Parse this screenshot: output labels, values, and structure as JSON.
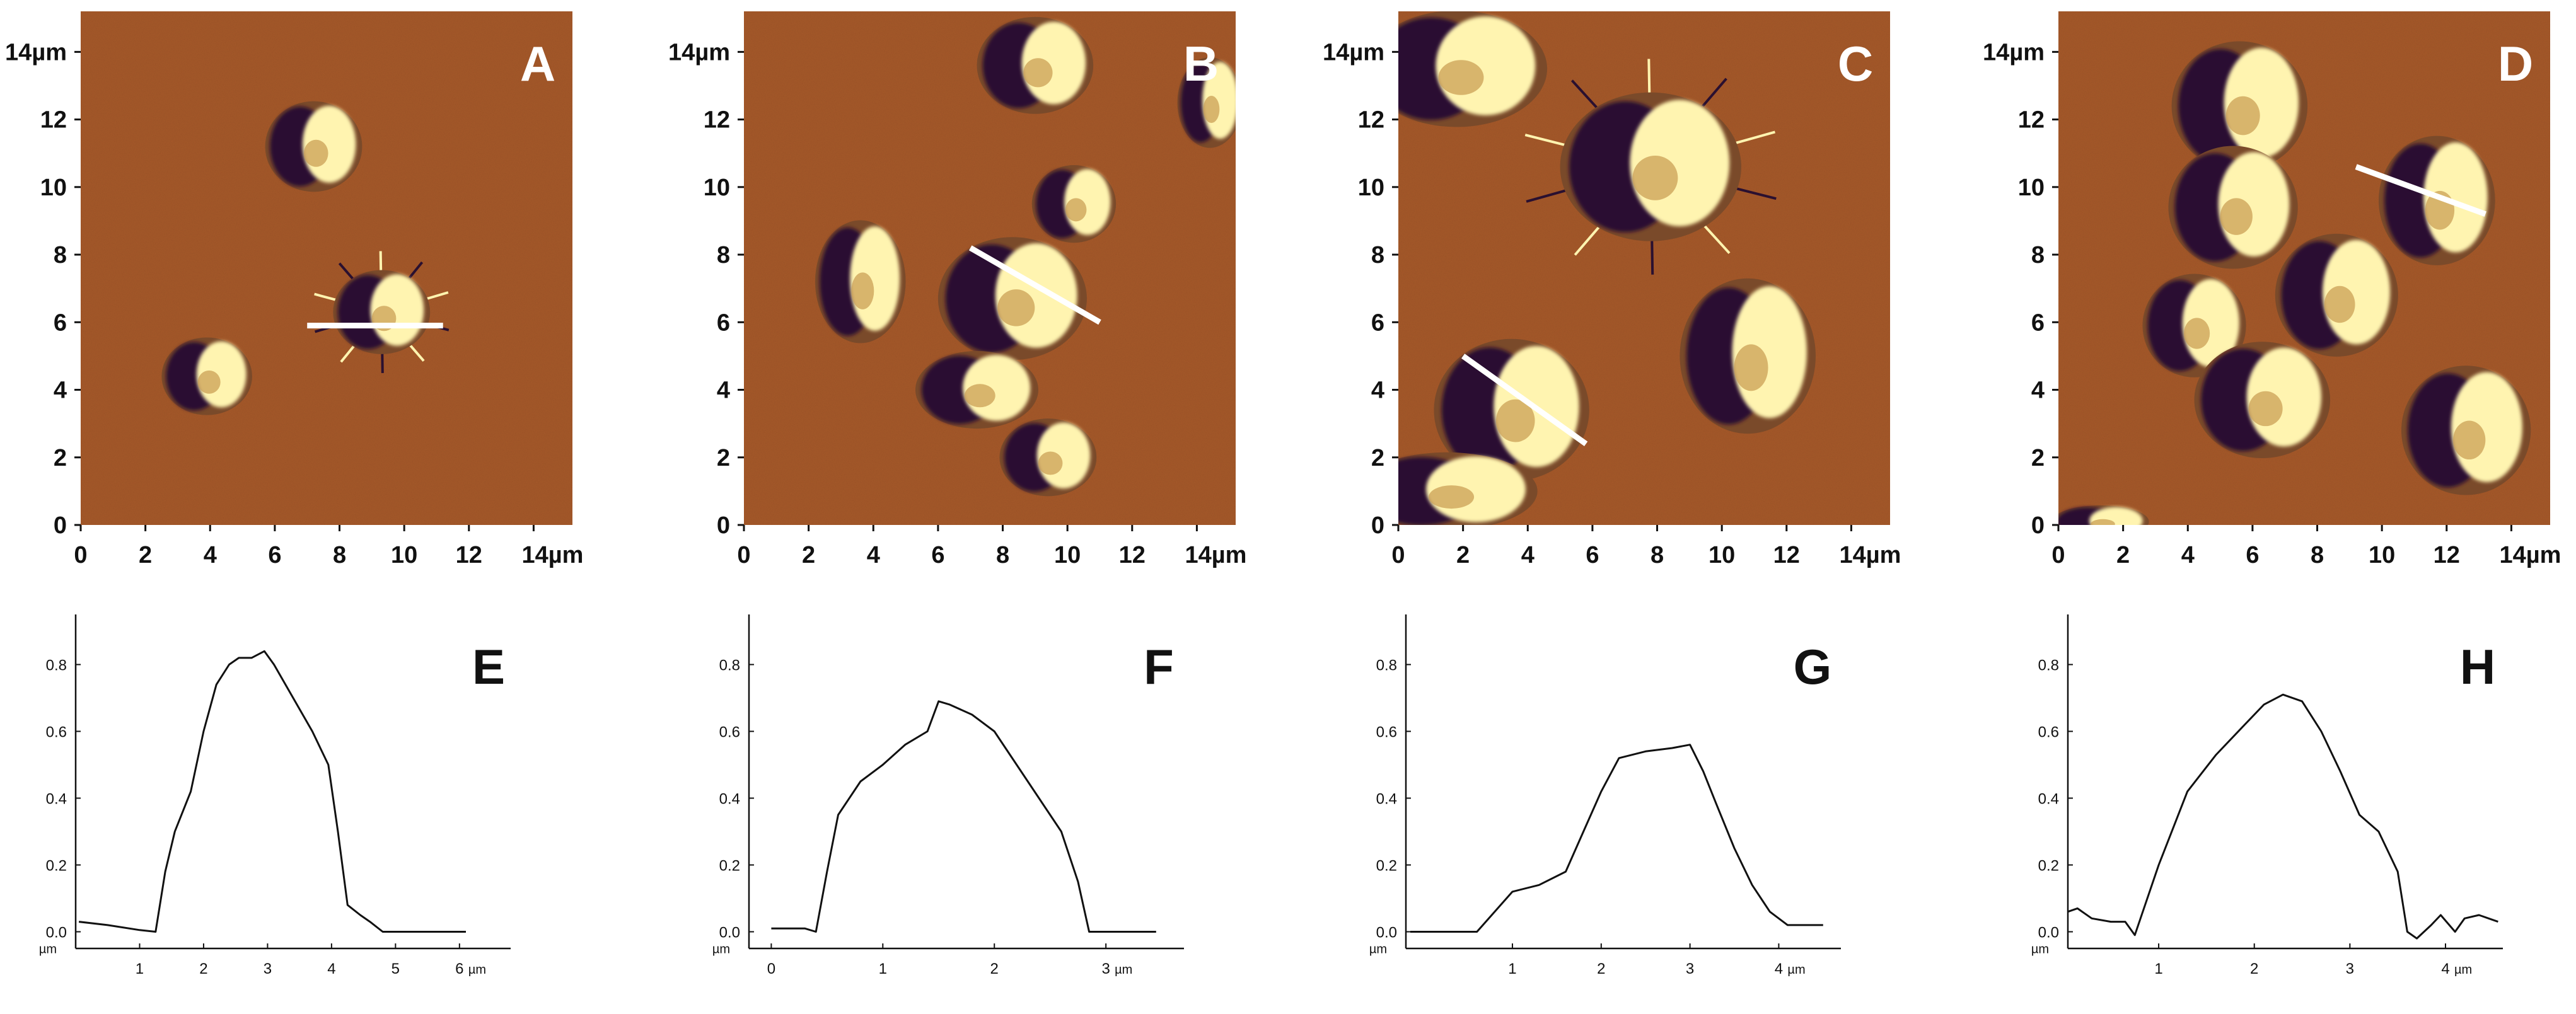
{
  "colors": {
    "afm_background": "#a85a2a",
    "afm_dark": "#2a1030",
    "afm_bright": "#fff4b0",
    "scan_line": "#ffffff",
    "profile_line": "#111111"
  },
  "chart_data": [
    {
      "type": "heatmap",
      "panel": "A",
      "x_ticks": [
        "0",
        "2",
        "4",
        "6",
        "8",
        "10",
        "12",
        "14µm"
      ],
      "y_ticks": [
        "0",
        "2",
        "4",
        "6",
        "8",
        "10",
        "12",
        "14µm"
      ],
      "xlim": [
        0,
        15.2
      ],
      "ylim": [
        0,
        15.2
      ],
      "cells": [
        {
          "cx": 9.3,
          "cy": 6.3,
          "rx": 1.5,
          "ry": 1.3,
          "spikes": true
        },
        {
          "cx": 7.2,
          "cy": 11.2,
          "rx": 1.5,
          "ry": 1.4
        },
        {
          "cx": 3.9,
          "cy": 4.4,
          "rx": 1.4,
          "ry": 1.2
        }
      ],
      "scan_line": {
        "x1": 7.0,
        "y1": 5.9,
        "x2": 11.2,
        "y2": 5.9
      }
    },
    {
      "type": "heatmap",
      "panel": "B",
      "x_ticks": [
        "0",
        "2",
        "4",
        "6",
        "8",
        "10",
        "12",
        "14µm"
      ],
      "y_ticks": [
        "0",
        "2",
        "4",
        "6",
        "8",
        "10",
        "12",
        "14µm"
      ],
      "xlim": [
        0,
        15.2
      ],
      "ylim": [
        0,
        15.2
      ],
      "cells": [
        {
          "cx": 3.6,
          "cy": 7.2,
          "rx": 1.4,
          "ry": 1.9
        },
        {
          "cx": 8.3,
          "cy": 6.7,
          "rx": 2.3,
          "ry": 1.9
        },
        {
          "cx": 7.2,
          "cy": 4.0,
          "rx": 1.9,
          "ry": 1.2
        },
        {
          "cx": 9.4,
          "cy": 2.0,
          "rx": 1.5,
          "ry": 1.2
        },
        {
          "cx": 10.2,
          "cy": 9.5,
          "rx": 1.3,
          "ry": 1.2
        },
        {
          "cx": 9.0,
          "cy": 13.6,
          "rx": 1.8,
          "ry": 1.5
        },
        {
          "cx": 14.4,
          "cy": 12.5,
          "rx": 1.0,
          "ry": 1.4
        }
      ],
      "scan_line": {
        "x1": 7.0,
        "y1": 8.2,
        "x2": 11.0,
        "y2": 6.0
      }
    },
    {
      "type": "heatmap",
      "panel": "C",
      "x_ticks": [
        "0",
        "2",
        "4",
        "6",
        "8",
        "10",
        "12",
        "14µm"
      ],
      "y_ticks": [
        "0",
        "2",
        "4",
        "6",
        "8",
        "10",
        "12",
        "14µm"
      ],
      "xlim": [
        0,
        15.2
      ],
      "ylim": [
        0,
        15.2
      ],
      "cells": [
        {
          "cx": 7.8,
          "cy": 10.6,
          "rx": 2.8,
          "ry": 2.3,
          "spikes": true
        },
        {
          "cx": 10.8,
          "cy": 5.0,
          "rx": 2.1,
          "ry": 2.4
        },
        {
          "cx": 3.5,
          "cy": 3.4,
          "rx": 2.4,
          "ry": 2.2
        },
        {
          "cx": 1.8,
          "cy": 13.5,
          "rx": 2.8,
          "ry": 1.8
        },
        {
          "cx": 1.5,
          "cy": 1.0,
          "rx": 2.8,
          "ry": 1.2
        }
      ],
      "scan_line": {
        "x1": 2.0,
        "y1": 5.0,
        "x2": 5.8,
        "y2": 2.4
      }
    },
    {
      "type": "heatmap",
      "panel": "D",
      "x_ticks": [
        "0",
        "2",
        "4",
        "6",
        "8",
        "10",
        "12",
        "14µm"
      ],
      "y_ticks": [
        "0",
        "2",
        "4",
        "6",
        "8",
        "10",
        "12",
        "14µm"
      ],
      "xlim": [
        0,
        15.2
      ],
      "ylim": [
        0,
        15.2
      ],
      "cells": [
        {
          "cx": 5.6,
          "cy": 12.4,
          "rx": 2.1,
          "ry": 2.0
        },
        {
          "cx": 5.4,
          "cy": 9.4,
          "rx": 2.0,
          "ry": 1.9
        },
        {
          "cx": 8.6,
          "cy": 6.8,
          "rx": 1.9,
          "ry": 1.9
        },
        {
          "cx": 11.7,
          "cy": 9.6,
          "rx": 1.8,
          "ry": 2.0
        },
        {
          "cx": 4.2,
          "cy": 5.9,
          "rx": 1.6,
          "ry": 1.6
        },
        {
          "cx": 6.3,
          "cy": 3.7,
          "rx": 2.1,
          "ry": 1.8
        },
        {
          "cx": 12.6,
          "cy": 2.8,
          "rx": 2.0,
          "ry": 2.0
        },
        {
          "cx": 1.3,
          "cy": 0.1,
          "rx": 1.5,
          "ry": 0.5
        }
      ],
      "scan_line": {
        "x1": 9.2,
        "y1": 10.6,
        "x2": 13.2,
        "y2": 9.2
      }
    },
    {
      "type": "line",
      "panel": "E",
      "x_ticks": [
        "1",
        "2",
        "3",
        "4",
        "5",
        "6"
      ],
      "x_unit": "µm",
      "y_ticks": [
        "0.0",
        "0.2",
        "0.4",
        "0.6",
        "0.8"
      ],
      "y_unit": "µm",
      "xlim": [
        0,
        6.8
      ],
      "ylim": [
        -0.05,
        0.95
      ],
      "x": [
        0.05,
        0.5,
        1.0,
        1.25,
        1.4,
        1.55,
        1.8,
        2.0,
        2.2,
        2.4,
        2.55,
        2.75,
        2.95,
        3.1,
        3.4,
        3.7,
        3.95,
        4.1,
        4.25,
        4.45,
        4.6,
        4.8,
        5.2,
        5.6,
        6.1
      ],
      "y": [
        0.03,
        0.02,
        0.005,
        0.0,
        0.18,
        0.3,
        0.42,
        0.6,
        0.74,
        0.8,
        0.82,
        0.82,
        0.84,
        0.8,
        0.7,
        0.6,
        0.5,
        0.3,
        0.08,
        0.05,
        0.03,
        0.0,
        0.0,
        0.0,
        0.0
      ]
    },
    {
      "type": "line",
      "panel": "F",
      "x_ticks": [
        "0",
        "1",
        "2",
        "3"
      ],
      "x_unit": "µm",
      "y_ticks": [
        "0.0",
        "0.2",
        "0.4",
        "0.6",
        "0.8"
      ],
      "y_unit": "µm",
      "xlim": [
        -0.2,
        3.7
      ],
      "ylim": [
        -0.05,
        0.95
      ],
      "x": [
        0.0,
        0.15,
        0.3,
        0.4,
        0.5,
        0.6,
        0.8,
        1.0,
        1.2,
        1.4,
        1.5,
        1.6,
        1.8,
        2.0,
        2.2,
        2.4,
        2.6,
        2.75,
        2.85,
        3.0,
        3.2,
        3.45
      ],
      "y": [
        0.01,
        0.01,
        0.01,
        0.0,
        0.18,
        0.35,
        0.45,
        0.5,
        0.56,
        0.6,
        0.69,
        0.68,
        0.65,
        0.6,
        0.5,
        0.4,
        0.3,
        0.15,
        0.0,
        0.0,
        0.0,
        0.0
      ]
    },
    {
      "type": "line",
      "panel": "G",
      "x_ticks": [
        "1",
        "2",
        "3",
        "4"
      ],
      "x_unit": "µm",
      "y_ticks": [
        "0.0",
        "0.2",
        "0.4",
        "0.6",
        "0.8"
      ],
      "y_unit": "µm",
      "xlim": [
        -0.2,
        4.7
      ],
      "ylim": [
        -0.05,
        0.95
      ],
      "x": [
        -0.15,
        0.3,
        0.6,
        0.8,
        1.0,
        1.3,
        1.6,
        1.8,
        2.0,
        2.2,
        2.5,
        2.8,
        3.0,
        3.15,
        3.3,
        3.5,
        3.7,
        3.9,
        4.1,
        4.5
      ],
      "y": [
        0.0,
        0.0,
        0.0,
        0.06,
        0.12,
        0.14,
        0.18,
        0.3,
        0.42,
        0.52,
        0.54,
        0.55,
        0.56,
        0.48,
        0.38,
        0.25,
        0.14,
        0.06,
        0.02,
        0.02
      ]
    },
    {
      "type": "line",
      "panel": "H",
      "x_ticks": [
        "1",
        "2",
        "3",
        "4"
      ],
      "x_unit": "µm",
      "y_ticks": [
        "0.0",
        "0.2",
        "0.4",
        "0.6",
        "0.8"
      ],
      "y_unit": "µm",
      "xlim": [
        0.05,
        4.6
      ],
      "ylim": [
        -0.05,
        0.95
      ],
      "x": [
        0.05,
        0.15,
        0.3,
        0.5,
        0.65,
        0.75,
        1.0,
        1.3,
        1.6,
        1.9,
        2.1,
        2.3,
        2.5,
        2.7,
        2.9,
        3.1,
        3.3,
        3.5,
        3.6,
        3.7,
        3.85,
        3.95,
        4.1,
        4.2,
        4.35,
        4.45,
        4.55
      ],
      "y": [
        0.06,
        0.07,
        0.04,
        0.03,
        0.03,
        -0.01,
        0.2,
        0.42,
        0.53,
        0.62,
        0.68,
        0.71,
        0.69,
        0.6,
        0.48,
        0.35,
        0.3,
        0.18,
        0.0,
        -0.02,
        0.02,
        0.05,
        0.0,
        0.04,
        0.05,
        0.04,
        0.03
      ]
    }
  ]
}
